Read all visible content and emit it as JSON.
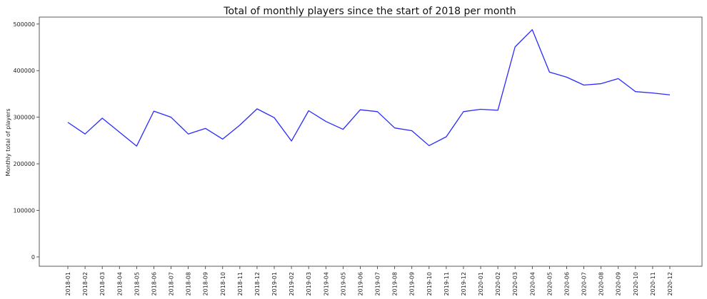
{
  "chart_data": {
    "type": "line",
    "title": "Total of monthly players since the start of 2018 per month",
    "xlabel": "",
    "ylabel": "Monthly total of players",
    "ylim": [
      -20000,
      515000
    ],
    "yticks": [
      0,
      100000,
      200000,
      300000,
      400000,
      500000
    ],
    "grid": false,
    "categories": [
      "2018-01",
      "2018-02",
      "2018-03",
      "2018-04",
      "2018-05",
      "2018-06",
      "2018-07",
      "2018-08",
      "2018-09",
      "2018-10",
      "2018-11",
      "2018-12",
      "2019-01",
      "2019-02",
      "2019-03",
      "2019-04",
      "2019-05",
      "2019-06",
      "2019-07",
      "2019-08",
      "2019-09",
      "2019-10",
      "2019-11",
      "2019-12",
      "2020-01",
      "2020-02",
      "2020-03",
      "2020-04",
      "2020-05",
      "2020-06",
      "2020-07",
      "2020-08",
      "2020-09",
      "2020-10",
      "2020-11",
      "2020-12"
    ],
    "series": [
      {
        "color": "#2a2aff",
        "values": [
          289000,
          264000,
          298000,
          268000,
          238000,
          313000,
          300000,
          264000,
          276000,
          253000,
          283000,
          318000,
          299000,
          249000,
          314000,
          291000,
          274000,
          316000,
          312000,
          277000,
          271000,
          239000,
          258000,
          312000,
          317000,
          315000,
          451000,
          488000,
          397000,
          386000,
          369000,
          372000,
          383000,
          355000,
          352000,
          348000
        ]
      }
    ]
  }
}
